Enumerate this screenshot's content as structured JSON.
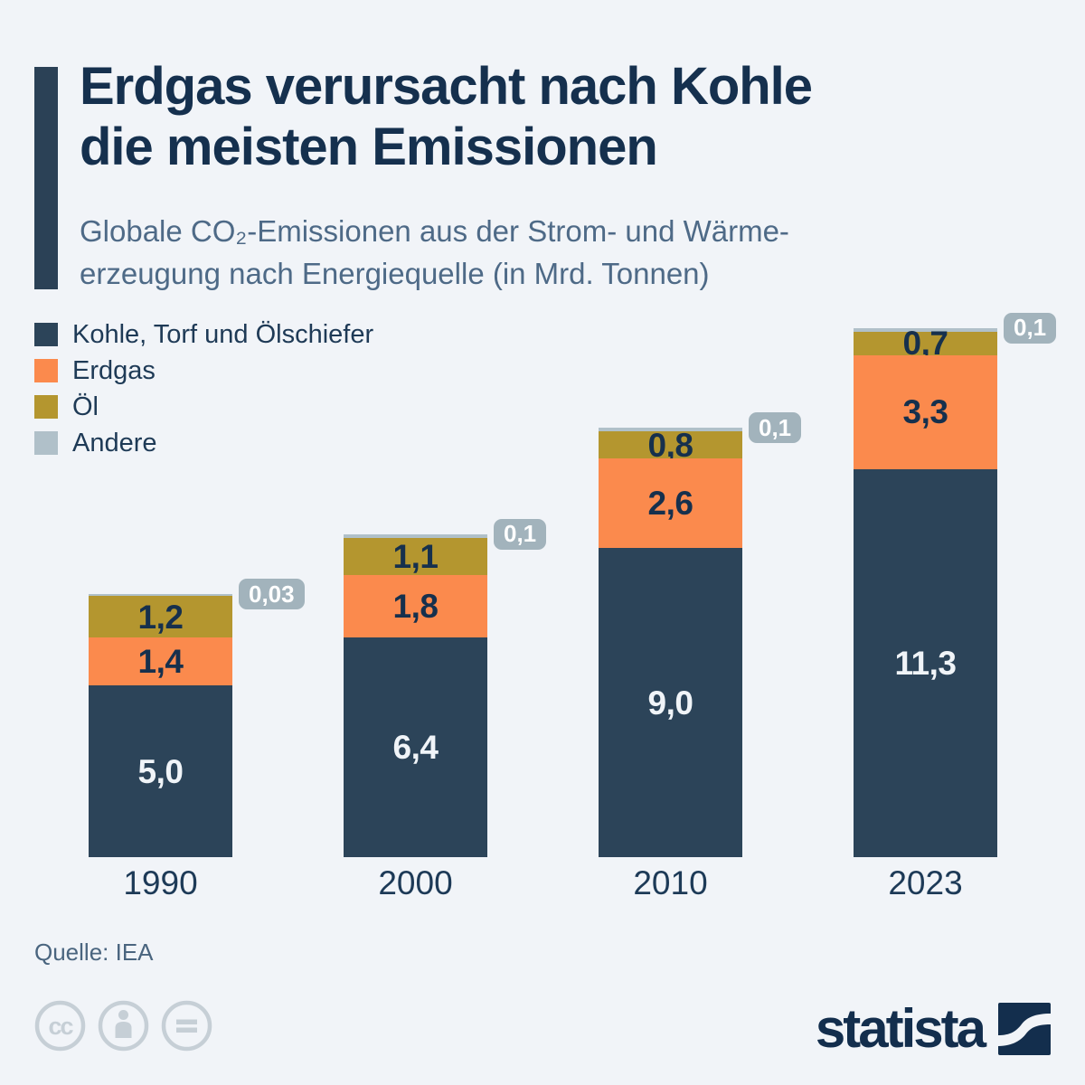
{
  "header": {
    "title_lines": [
      "Erdgas verursacht nach Kohle",
      "die meisten Emissionen"
    ],
    "subtitle_lines": [
      "Globale CO₂-Emissionen aus der Strom- und Wärme-",
      "erzeugung nach Energiequelle (in Mrd. Tonnen)"
    ]
  },
  "legend": {
    "items": [
      {
        "label": "Kohle, Torf und Ölschiefer",
        "color": "#2c4459"
      },
      {
        "label": "Erdgas",
        "color": "#fb8a4d"
      },
      {
        "label": "Öl",
        "color": "#b4962f"
      },
      {
        "label": "Andere",
        "color": "#b0c0c9"
      }
    ]
  },
  "chart_data": {
    "type": "bar",
    "stacked": true,
    "title": "Globale CO₂-Emissionen aus der Strom- und Wärmeerzeugung nach Energiequelle (in Mrd. Tonnen)",
    "categories": [
      "1990",
      "2000",
      "2010",
      "2023"
    ],
    "series": [
      {
        "name": "Kohle, Torf und Ölschiefer",
        "color": "#2c4459",
        "values": [
          5.0,
          6.4,
          9.0,
          11.3
        ],
        "labels": [
          "5,0",
          "6,4",
          "9,0",
          "11,3"
        ],
        "label_color": "#f0f4f8"
      },
      {
        "name": "Erdgas",
        "color": "#fb8a4d",
        "values": [
          1.4,
          1.8,
          2.6,
          3.3
        ],
        "labels": [
          "1,4",
          "1,8",
          "2,6",
          "3,3"
        ],
        "label_color": "#16304d"
      },
      {
        "name": "Öl",
        "color": "#b4962f",
        "values": [
          1.2,
          1.1,
          0.8,
          0.7
        ],
        "labels": [
          "1,2",
          "1,1",
          "0,8",
          "0,7"
        ],
        "label_color": "#16304d"
      },
      {
        "name": "Andere",
        "color": "#b0c0c9",
        "values": [
          0.03,
          0.1,
          0.1,
          0.1
        ],
        "labels": [
          "0,03",
          "0,1",
          "0,1",
          "0,1"
        ],
        "label_style": "callout",
        "callout_bg": "#a2b3bc",
        "callout_color": "#ffffff"
      }
    ],
    "unit": "Mrd. Tonnen",
    "ylim": [
      0,
      15.4
    ],
    "grid": false,
    "legend_position": "top-left"
  },
  "footer": {
    "source": "Quelle: IEA",
    "license_icons": [
      "cc-icon",
      "attribution-person-icon",
      "equals-nd-icon"
    ],
    "brand": "statista"
  },
  "colors": {
    "background": "#f1f4f8",
    "title": "#15304e",
    "subtitle": "#4e6a87",
    "accent_bar": "#2b4156",
    "axis_text": "#1d3a57",
    "brand": "#132e4d",
    "license_icon": "#c6cfd6"
  }
}
